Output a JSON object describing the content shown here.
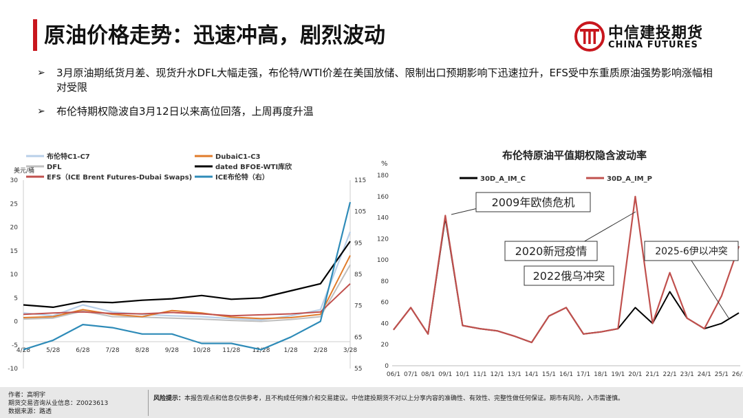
{
  "header": {
    "title": "原油价格走势：迅速冲高，剧烈波动",
    "logo_cn": "中信建投期货",
    "logo_en": "CHINA FUTURES"
  },
  "bullets": [
    "3月原油期纸货月差、现货升水DFL大幅走强，布伦特/WTI价差在美国放储、限制出口预期影响下迅速拉升，EFS受中东重质原油强势影响涨幅相对受限",
    "布伦特期权隐波自3月12日以来高位回落，上周再度升温"
  ],
  "footer": {
    "author_line": "作者：高明宇",
    "license_line": "期货交易咨询从业信息：Z0023613",
    "source_line": "数据来源：路透",
    "risk_label": "风险提示：",
    "risk_text": "本报告观点和信息仅供参考，且不构成任何推介和交易建议。中信建投期货不对以上分享内容的准确性、有效性、完整性做任何保证。期市有风险，入市需谨慎。"
  },
  "colors": {
    "brand_red": "#c8161d",
    "brent_c1c7": "#b8cfe8",
    "dubai_c1c3": "#e07b2a",
    "dfl": "#bfbfbf",
    "dated_wti": "#000000",
    "efs": "#c0504d",
    "ice_brent": "#2e8bb8",
    "vol_call": "#000000",
    "vol_put": "#c0504d"
  },
  "chart_data": [
    {
      "type": "line",
      "title": "",
      "ylabel": "美元/桶",
      "ylim": [
        -10,
        30
      ],
      "yticks": [
        "30",
        "25",
        "20",
        "15",
        "10",
        "5",
        "0",
        "-5",
        "-10"
      ],
      "y2lim": [
        55,
        115
      ],
      "y2ticks": [
        "115",
        "105",
        "95",
        "85",
        "75",
        "65",
        "55"
      ],
      "categories": [
        "4/28",
        "5/28",
        "6/28",
        "7/28",
        "8/28",
        "9/28",
        "10/28",
        "11/28",
        "12/28",
        "1/28",
        "2/28",
        "3/28"
      ],
      "legend": [
        "布伦特C1-C7",
        "DubaiC1-C3",
        "DFL",
        "dated BFOE-WTI库欣",
        "EFS（ICE Brent Futures-Dubai Swaps)",
        "ICE布伦特（右）"
      ],
      "series": [
        {
          "name": "布伦特C1-C7",
          "axis": "left",
          "values": [
            1.8,
            1.2,
            3.5,
            2.0,
            1.5,
            1.2,
            1.0,
            0.6,
            0.3,
            1.2,
            2.5,
            19.0
          ]
        },
        {
          "name": "DubaiC1-C3",
          "axis": "left",
          "values": [
            0.8,
            1.0,
            2.5,
            1.5,
            1.0,
            2.3,
            1.8,
            0.9,
            0.6,
            0.8,
            1.5,
            14.0
          ]
        },
        {
          "name": "DFL",
          "axis": "left",
          "values": [
            0.5,
            0.7,
            2.2,
            1.0,
            0.9,
            0.7,
            0.5,
            0.2,
            0.0,
            0.4,
            1.0,
            12.0
          ]
        },
        {
          "name": "dated BFOE-WTI库欣",
          "axis": "left",
          "values": [
            3.5,
            3.0,
            4.2,
            4.0,
            4.5,
            4.8,
            5.5,
            4.7,
            5.0,
            6.5,
            8.0,
            17.0
          ]
        },
        {
          "name": "EFS（ICE Brent Futures-Dubai Swaps)",
          "axis": "left",
          "values": [
            1.5,
            1.8,
            2.0,
            1.7,
            1.6,
            1.9,
            1.6,
            1.2,
            1.4,
            1.6,
            2.0,
            8.0
          ]
        },
        {
          "name": "ICE布伦特（右）",
          "axis": "right",
          "values": [
            61,
            64,
            69,
            68,
            66,
            66,
            63,
            63,
            61,
            65,
            70,
            108
          ]
        }
      ]
    },
    {
      "type": "line",
      "title": "布伦特原油平值期权隐含波动率",
      "ylabel": "%",
      "ylim": [
        0,
        180
      ],
      "yticks": [
        "180",
        "160",
        "140",
        "120",
        "100",
        "80",
        "60",
        "40",
        "20",
        "0"
      ],
      "categories": [
        "06/1",
        "07/1",
        "08/1",
        "09/1",
        "10/1",
        "11/1",
        "12/1",
        "13/1",
        "14/1",
        "15/1",
        "16/1",
        "17/1",
        "18/1",
        "19/1",
        "20/1",
        "21/1",
        "22/1",
        "23/1",
        "24/1",
        "25/1",
        "26/1"
      ],
      "legend": [
        "30D_A_IM_C",
        "30D_A_IM_P"
      ],
      "series": [
        {
          "name": "30D_A_IM_C",
          "values": [
            34,
            55,
            30,
            140,
            38,
            35,
            33,
            28,
            22,
            47,
            55,
            30,
            32,
            35,
            55,
            40,
            70,
            45,
            35,
            40,
            50
          ]
        },
        {
          "name": "30D_A_IM_P",
          "values": [
            34,
            55,
            30,
            142,
            38,
            35,
            33,
            28,
            22,
            47,
            55,
            30,
            32,
            35,
            160,
            40,
            88,
            45,
            35,
            66,
            113
          ]
        }
      ],
      "annotations": [
        "2009年欧债危机",
        "2020新冠疫情",
        "2022俄乌冲突",
        "2025-6伊以冲突"
      ]
    }
  ]
}
